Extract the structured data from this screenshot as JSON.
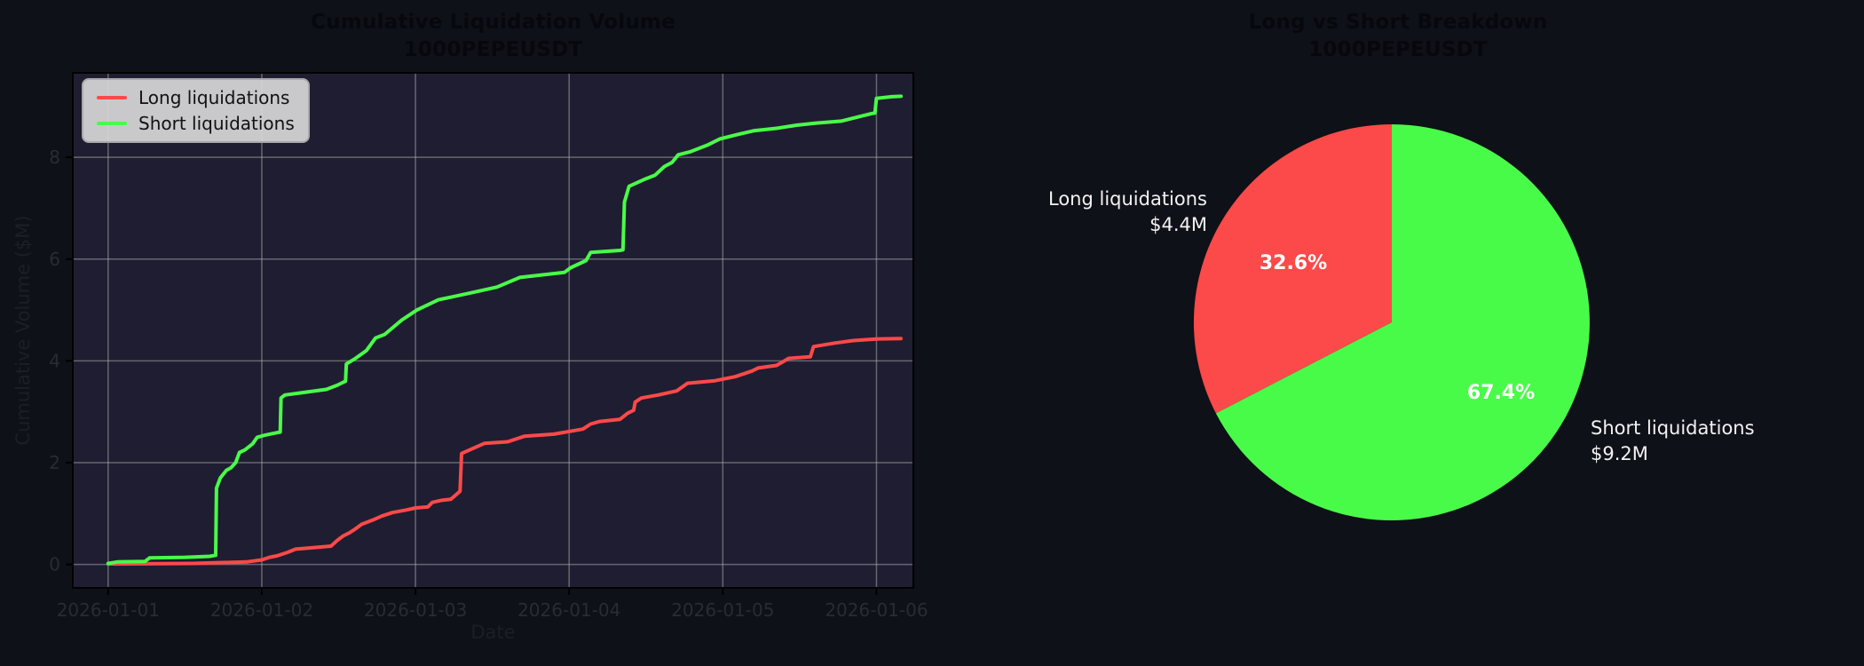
{
  "figure": {
    "bg": "#0e1117",
    "axes_bg": "#1f1d31",
    "grid_color": "rgba(176,176,176,0.5)",
    "spine_color": "#000000",
    "tick_text_color": "#2a2b33",
    "title_color": "#07080d",
    "long_color": "#fc4949",
    "short_color": "#49fb49"
  },
  "chart_data": [
    {
      "type": "line",
      "title": "Cumulative Liquidation Volume",
      "subtitle": "1000PEPEUSDT",
      "xlabel": "Date",
      "ylabel": "Cumulative Volume ($M)",
      "x_tick_labels": [
        "2026-01-01",
        "2026-01-02",
        "2026-01-03",
        "2026-01-04",
        "2026-01-05",
        "2026-01-06"
      ],
      "x_tick_positions": [
        0,
        1,
        2,
        3,
        4,
        5
      ],
      "y_ticks": [
        0,
        2,
        4,
        6,
        8
      ],
      "xlim": [
        -0.23,
        5.24
      ],
      "ylim": [
        -0.46,
        9.66
      ],
      "grid": true,
      "legend_position": "upper left",
      "series": [
        {
          "name": "Long liquidations",
          "color": "#fc4949",
          "points": [
            [
              0,
              0.01
            ],
            [
              0.55,
              0.02
            ],
            [
              0.9,
              0.05
            ],
            [
              1.0,
              0.09
            ],
            [
              1.05,
              0.14
            ],
            [
              1.1,
              0.17
            ],
            [
              1.17,
              0.24
            ],
            [
              1.22,
              0.3
            ],
            [
              1.3,
              0.32
            ],
            [
              1.45,
              0.36
            ],
            [
              1.49,
              0.47
            ],
            [
              1.53,
              0.56
            ],
            [
              1.57,
              0.62
            ],
            [
              1.6,
              0.68
            ],
            [
              1.65,
              0.79
            ],
            [
              1.72,
              0.87
            ],
            [
              1.78,
              0.95
            ],
            [
              1.85,
              1.02
            ],
            [
              1.94,
              1.07
            ],
            [
              2.0,
              1.11
            ],
            [
              2.08,
              1.13
            ],
            [
              2.11,
              1.22
            ],
            [
              2.17,
              1.26
            ],
            [
              2.23,
              1.28
            ],
            [
              2.26,
              1.36
            ],
            [
              2.29,
              1.44
            ],
            [
              2.3,
              2.18
            ],
            [
              2.36,
              2.26
            ],
            [
              2.45,
              2.38
            ],
            [
              2.6,
              2.41
            ],
            [
              2.71,
              2.52
            ],
            [
              2.9,
              2.56
            ],
            [
              3.09,
              2.66
            ],
            [
              3.14,
              2.76
            ],
            [
              3.2,
              2.81
            ],
            [
              3.33,
              2.85
            ],
            [
              3.38,
              2.97
            ],
            [
              3.42,
              3.03
            ],
            [
              3.43,
              3.19
            ],
            [
              3.47,
              3.27
            ],
            [
              3.58,
              3.33
            ],
            [
              3.7,
              3.41
            ],
            [
              3.77,
              3.56
            ],
            [
              3.95,
              3.61
            ],
            [
              4.08,
              3.69
            ],
            [
              4.19,
              3.8
            ],
            [
              4.23,
              3.86
            ],
            [
              4.35,
              3.91
            ],
            [
              4.43,
              4.05
            ],
            [
              4.57,
              4.08
            ],
            [
              4.59,
              4.28
            ],
            [
              4.73,
              4.35
            ],
            [
              4.85,
              4.4
            ],
            [
              5.0,
              4.43
            ],
            [
              5.16,
              4.44
            ]
          ]
        },
        {
          "name": "Short liquidations",
          "color": "#49fb49",
          "points": [
            [
              0,
              0.02
            ],
            [
              0.06,
              0.05
            ],
            [
              0.24,
              0.06
            ],
            [
              0.27,
              0.13
            ],
            [
              0.5,
              0.14
            ],
            [
              0.66,
              0.16
            ],
            [
              0.7,
              0.18
            ],
            [
              0.705,
              1.5
            ],
            [
              0.73,
              1.7
            ],
            [
              0.77,
              1.85
            ],
            [
              0.8,
              1.9
            ],
            [
              0.83,
              2.0
            ],
            [
              0.855,
              2.2
            ],
            [
              0.89,
              2.25
            ],
            [
              0.94,
              2.37
            ],
            [
              0.97,
              2.5
            ],
            [
              1.02,
              2.54
            ],
            [
              1.1,
              2.59
            ],
            [
              1.12,
              2.6
            ],
            [
              1.125,
              3.27
            ],
            [
              1.15,
              3.33
            ],
            [
              1.25,
              3.37
            ],
            [
              1.42,
              3.44
            ],
            [
              1.49,
              3.52
            ],
            [
              1.53,
              3.58
            ],
            [
              1.545,
              3.6
            ],
            [
              1.55,
              3.94
            ],
            [
              1.6,
              4.03
            ],
            [
              1.68,
              4.2
            ],
            [
              1.74,
              4.45
            ],
            [
              1.8,
              4.52
            ],
            [
              1.91,
              4.8
            ],
            [
              2.01,
              5.0
            ],
            [
              2.08,
              5.1
            ],
            [
              2.15,
              5.2
            ],
            [
              2.35,
              5.33
            ],
            [
              2.53,
              5.45
            ],
            [
              2.68,
              5.64
            ],
            [
              2.97,
              5.74
            ],
            [
              3.01,
              5.83
            ],
            [
              3.11,
              5.97
            ],
            [
              3.14,
              6.13
            ],
            [
              3.33,
              6.17
            ],
            [
              3.35,
              6.18
            ],
            [
              3.36,
              7.12
            ],
            [
              3.39,
              7.43
            ],
            [
              3.5,
              7.58
            ],
            [
              3.56,
              7.65
            ],
            [
              3.62,
              7.82
            ],
            [
              3.67,
              7.9
            ],
            [
              3.71,
              8.05
            ],
            [
              3.79,
              8.11
            ],
            [
              3.9,
              8.24
            ],
            [
              3.98,
              8.36
            ],
            [
              4.1,
              8.45
            ],
            [
              4.2,
              8.52
            ],
            [
              4.35,
              8.57
            ],
            [
              4.48,
              8.63
            ],
            [
              4.6,
              8.67
            ],
            [
              4.77,
              8.71
            ],
            [
              4.97,
              8.86
            ],
            [
              4.99,
              8.87
            ],
            [
              5.0,
              9.16
            ],
            [
              5.1,
              9.19
            ],
            [
              5.16,
              9.2
            ]
          ]
        }
      ]
    },
    {
      "type": "pie",
      "title": "Long vs Short Breakdown",
      "subtitle": "1000PEPEUSDT",
      "start_angle": 90,
      "counterclock": true,
      "slices": [
        {
          "label": "Long liquidations",
          "amount": "$4.4M",
          "pct": 32.6,
          "pct_label": "32.6%",
          "color": "#fc4949"
        },
        {
          "label": "Short liquidations",
          "amount": "$9.2M",
          "pct": 67.4,
          "pct_label": "67.4%",
          "color": "#49fb49"
        }
      ]
    }
  ]
}
